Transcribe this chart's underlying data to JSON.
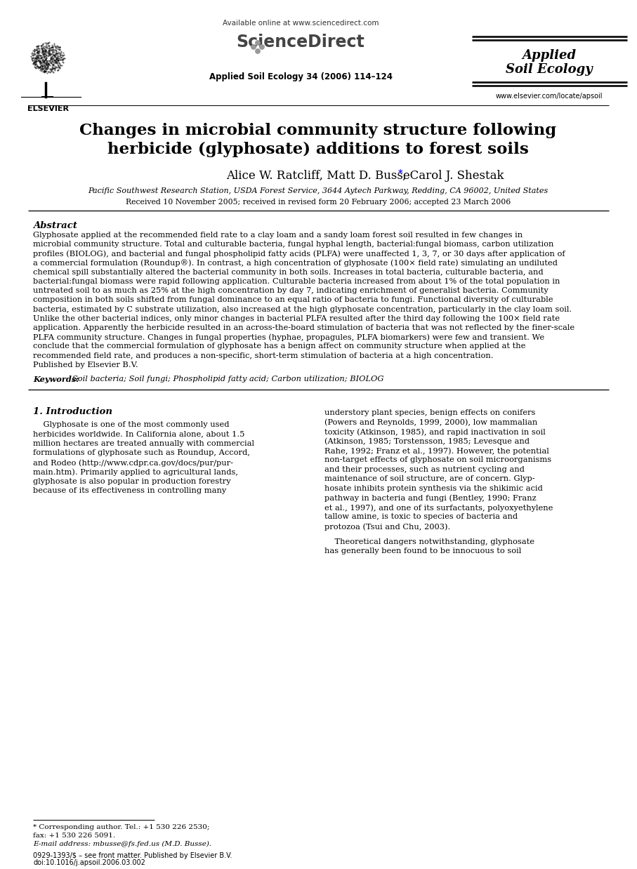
{
  "bg_color": "#ffffff",
  "title_line1": "Changes in microbial community structure following",
  "title_line2": "herbicide (glyphosate) additions to forest soils",
  "affiliation": "Pacific Southwest Research Station, USDA Forest Service, 3644 Aytech Parkway, Redding, CA 96002, United States",
  "received": "Received 10 November 2005; received in revised form 20 February 2006; accepted 23 March 2006",
  "available_online": "Available online at www.sciencedirect.com",
  "journal_info": "Applied Soil Ecology 34 (2006) 114–124",
  "journal_name_line1": "Applied",
  "journal_name_line2": "Soil Ecology",
  "journal_url": "www.elsevier.com/locate/apsoil",
  "elsevier_label": "ELSEVIER",
  "abstract_title": "Abstract",
  "abstract_lines": [
    "Glyphosate applied at the recommended field rate to a clay loam and a sandy loam forest soil resulted in few changes in",
    "microbial community structure. Total and culturable bacteria, fungal hyphal length, bacterial:fungal biomass, carbon utilization",
    "profiles (BIOLOG), and bacterial and fungal phospholipid fatty acids (PLFA) were unaffected 1, 3, 7, or 30 days after application of",
    "a commercial formulation (Roundup®). In contrast, a high concentration of glyphosate (100× field rate) simulating an undiluted",
    "chemical spill substantially altered the bacterial community in both soils. Increases in total bacteria, culturable bacteria, and",
    "bacterial:fungal biomass were rapid following application. Culturable bacteria increased from about 1% of the total population in",
    "untreated soil to as much as 25% at the high concentration by day 7, indicating enrichment of generalist bacteria. Community",
    "composition in both soils shifted from fungal dominance to an equal ratio of bacteria to fungi. Functional diversity of culturable",
    "bacteria, estimated by C substrate utilization, also increased at the high glyphosate concentration, particularly in the clay loam soil.",
    "Unlike the other bacterial indices, only minor changes in bacterial PLFA resulted after the third day following the 100× field rate",
    "application. Apparently the herbicide resulted in an across-the-board stimulation of bacteria that was not reflected by the finer-scale",
    "PLFA community structure. Changes in fungal properties (hyphae, propagules, PLFA biomarkers) were few and transient. We",
    "conclude that the commercial formulation of glyphosate has a benign affect on community structure when applied at the",
    "recommended field rate, and produces a non-specific, short-term stimulation of bacteria at a high concentration.",
    "Published by Elsevier B.V."
  ],
  "keywords_label": "Keywords:",
  "keywords_text": "Soil bacteria; Soil fungi; Phospholipid fatty acid; Carbon utilization; BIOLOG",
  "section1_title": "1. Introduction",
  "intro_col1_lines": [
    "    Glyphosate is one of the most commonly used",
    "herbicides worldwide. In California alone, about 1.5",
    "million hectares are treated annually with commercial",
    "formulations of glyphosate such as Roundup, Accord,",
    "and Rodeo (http://www.cdpr.ca.gov/docs/pur/pur-",
    "main.htm). Primarily applied to agricultural lands,",
    "glyphosate is also popular in production forestry",
    "because of its effectiveness in controlling many"
  ],
  "intro_col2_lines": [
    "understory plant species, benign effects on conifers",
    "(Powers and Reynolds, 1999, 2000), low mammalian",
    "toxicity (Atkinson, 1985), and rapid inactivation in soil",
    "(Atkinson, 1985; Torstensson, 1985; Levesque and",
    "Rahe, 1992; Franz et al., 1997). However, the potential",
    "non-target effects of glyphosate on soil microorganisms",
    "and their processes, such as nutrient cycling and",
    "maintenance of soil structure, are of concern. Glyp-",
    "hosate inhibits protein synthesis via the shikimic acid",
    "pathway in bacteria and fungi (Bentley, 1990; Franz",
    "et al., 1997), and one of its surfactants, polyoxyethylene",
    "tallow amine, is toxic to species of bacteria and",
    "protozoa (Tsui and Chu, 2003).",
    "",
    "    Theoretical dangers notwithstanding, glyphosate",
    "has generally been found to be innocuous to soil"
  ],
  "footnote_star": "* Corresponding author. Tel.: +1 530 226 2530;",
  "footnote_fax": "fax: +1 530 226 5091.",
  "footnote_email": "E-mail address: mbusse@fs.fed.us (M.D. Busse).",
  "issn": "0929-1393/$ – see front matter. Published by Elsevier B.V.",
  "doi": "doi:10.1016/j.apsoil.2006.03.002",
  "sciencedirect_text": "ScienceDirect",
  "author_line": "Alice W. Ratcliff, Matt D. Busse",
  "author_star": "*",
  "author_rest": ", Carol J. Shestak"
}
